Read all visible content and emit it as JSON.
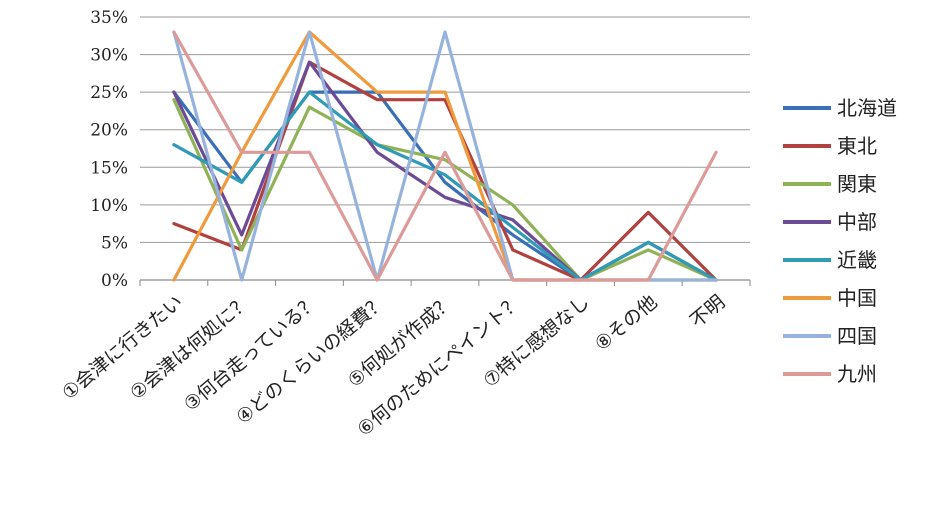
{
  "chart_data": {
    "type": "line",
    "categories": [
      "①会津に行きたい",
      "②会津は何処に？",
      "③何台走っている？",
      "④どのくらいの経費？",
      "⑤何処が作成？",
      "⑥何のためにペイント？",
      "⑦特に感想なし",
      "⑧その他",
      "不明"
    ],
    "yticks": [
      "0%",
      "5%",
      "10%",
      "15%",
      "20%",
      "25%",
      "30%",
      "35%"
    ],
    "ylim": [
      0,
      35
    ],
    "grid": true,
    "legend_position": "right",
    "series": [
      {
        "name": "北海道",
        "color": "#3a6fb5",
        "values": [
          25,
          13,
          25,
          25,
          13,
          6,
          0,
          5,
          0
        ]
      },
      {
        "name": "東北",
        "color": "#b0413e",
        "values": [
          7.5,
          4,
          29,
          24,
          24,
          4,
          0,
          9,
          0
        ]
      },
      {
        "name": "関東",
        "color": "#8fb256",
        "values": [
          24,
          4,
          23,
          18,
          16,
          10,
          0,
          4,
          0
        ]
      },
      {
        "name": "中部",
        "color": "#6b4a96",
        "values": [
          25,
          6,
          29,
          17,
          11,
          8,
          0,
          5,
          0
        ]
      },
      {
        "name": "近畿",
        "color": "#2f9bb5",
        "values": [
          18,
          13,
          25,
          18,
          14,
          7,
          0,
          5,
          0
        ]
      },
      {
        "name": "中国",
        "color": "#ef9a3c",
        "values": [
          0,
          17,
          33,
          25,
          25,
          0,
          0,
          0,
          0
        ]
      },
      {
        "name": "四国",
        "color": "#95b3dc",
        "values": [
          33,
          0,
          33,
          0,
          33,
          0,
          0,
          0,
          0
        ]
      },
      {
        "name": "九州",
        "color": "#dc9a99",
        "values": [
          33,
          17,
          17,
          0,
          17,
          0,
          0,
          0,
          17
        ]
      }
    ]
  }
}
